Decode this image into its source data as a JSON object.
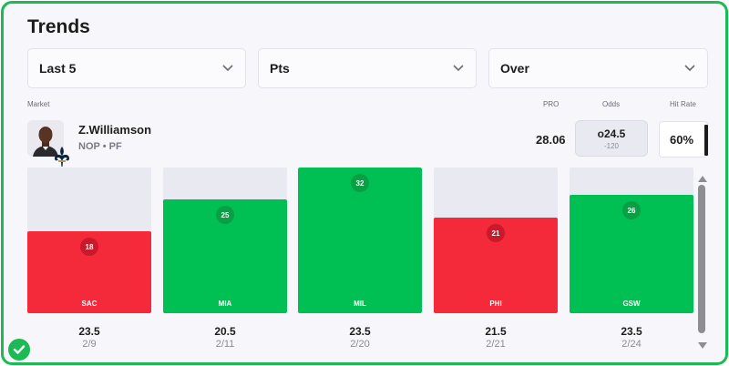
{
  "title": "Trends",
  "filters": {
    "games": "Last 5",
    "stat": "Pts",
    "side": "Over"
  },
  "labels": {
    "market": "Market",
    "pro": "PRO",
    "odds": "Odds",
    "hit_rate": "Hit Rate"
  },
  "player": {
    "name": "Z.Williamson",
    "team_pos": "NOP • PF"
  },
  "pro_value": "28.06",
  "odds": {
    "line": "o24.5",
    "price": "-120"
  },
  "hit_rate": "60%",
  "colors": {
    "hit": "#00c053",
    "miss": "#f42a3a",
    "accent": "#1db954"
  },
  "games": [
    {
      "value": "18",
      "pts": 18,
      "opp": "SAC",
      "line": "23.5",
      "date": "2/9",
      "result": "red"
    },
    {
      "value": "25",
      "pts": 25,
      "opp": "MIA",
      "line": "20.5",
      "date": "2/11",
      "result": "green"
    },
    {
      "value": "32",
      "pts": 32,
      "opp": "MIL",
      "line": "23.5",
      "date": "2/20",
      "result": "green"
    },
    {
      "value": "21",
      "pts": 21,
      "opp": "PHI",
      "line": "21.5",
      "date": "2/21",
      "result": "red"
    },
    {
      "value": "26",
      "pts": 26,
      "opp": "GSW",
      "line": "23.5",
      "date": "2/24",
      "result": "green"
    }
  ]
}
